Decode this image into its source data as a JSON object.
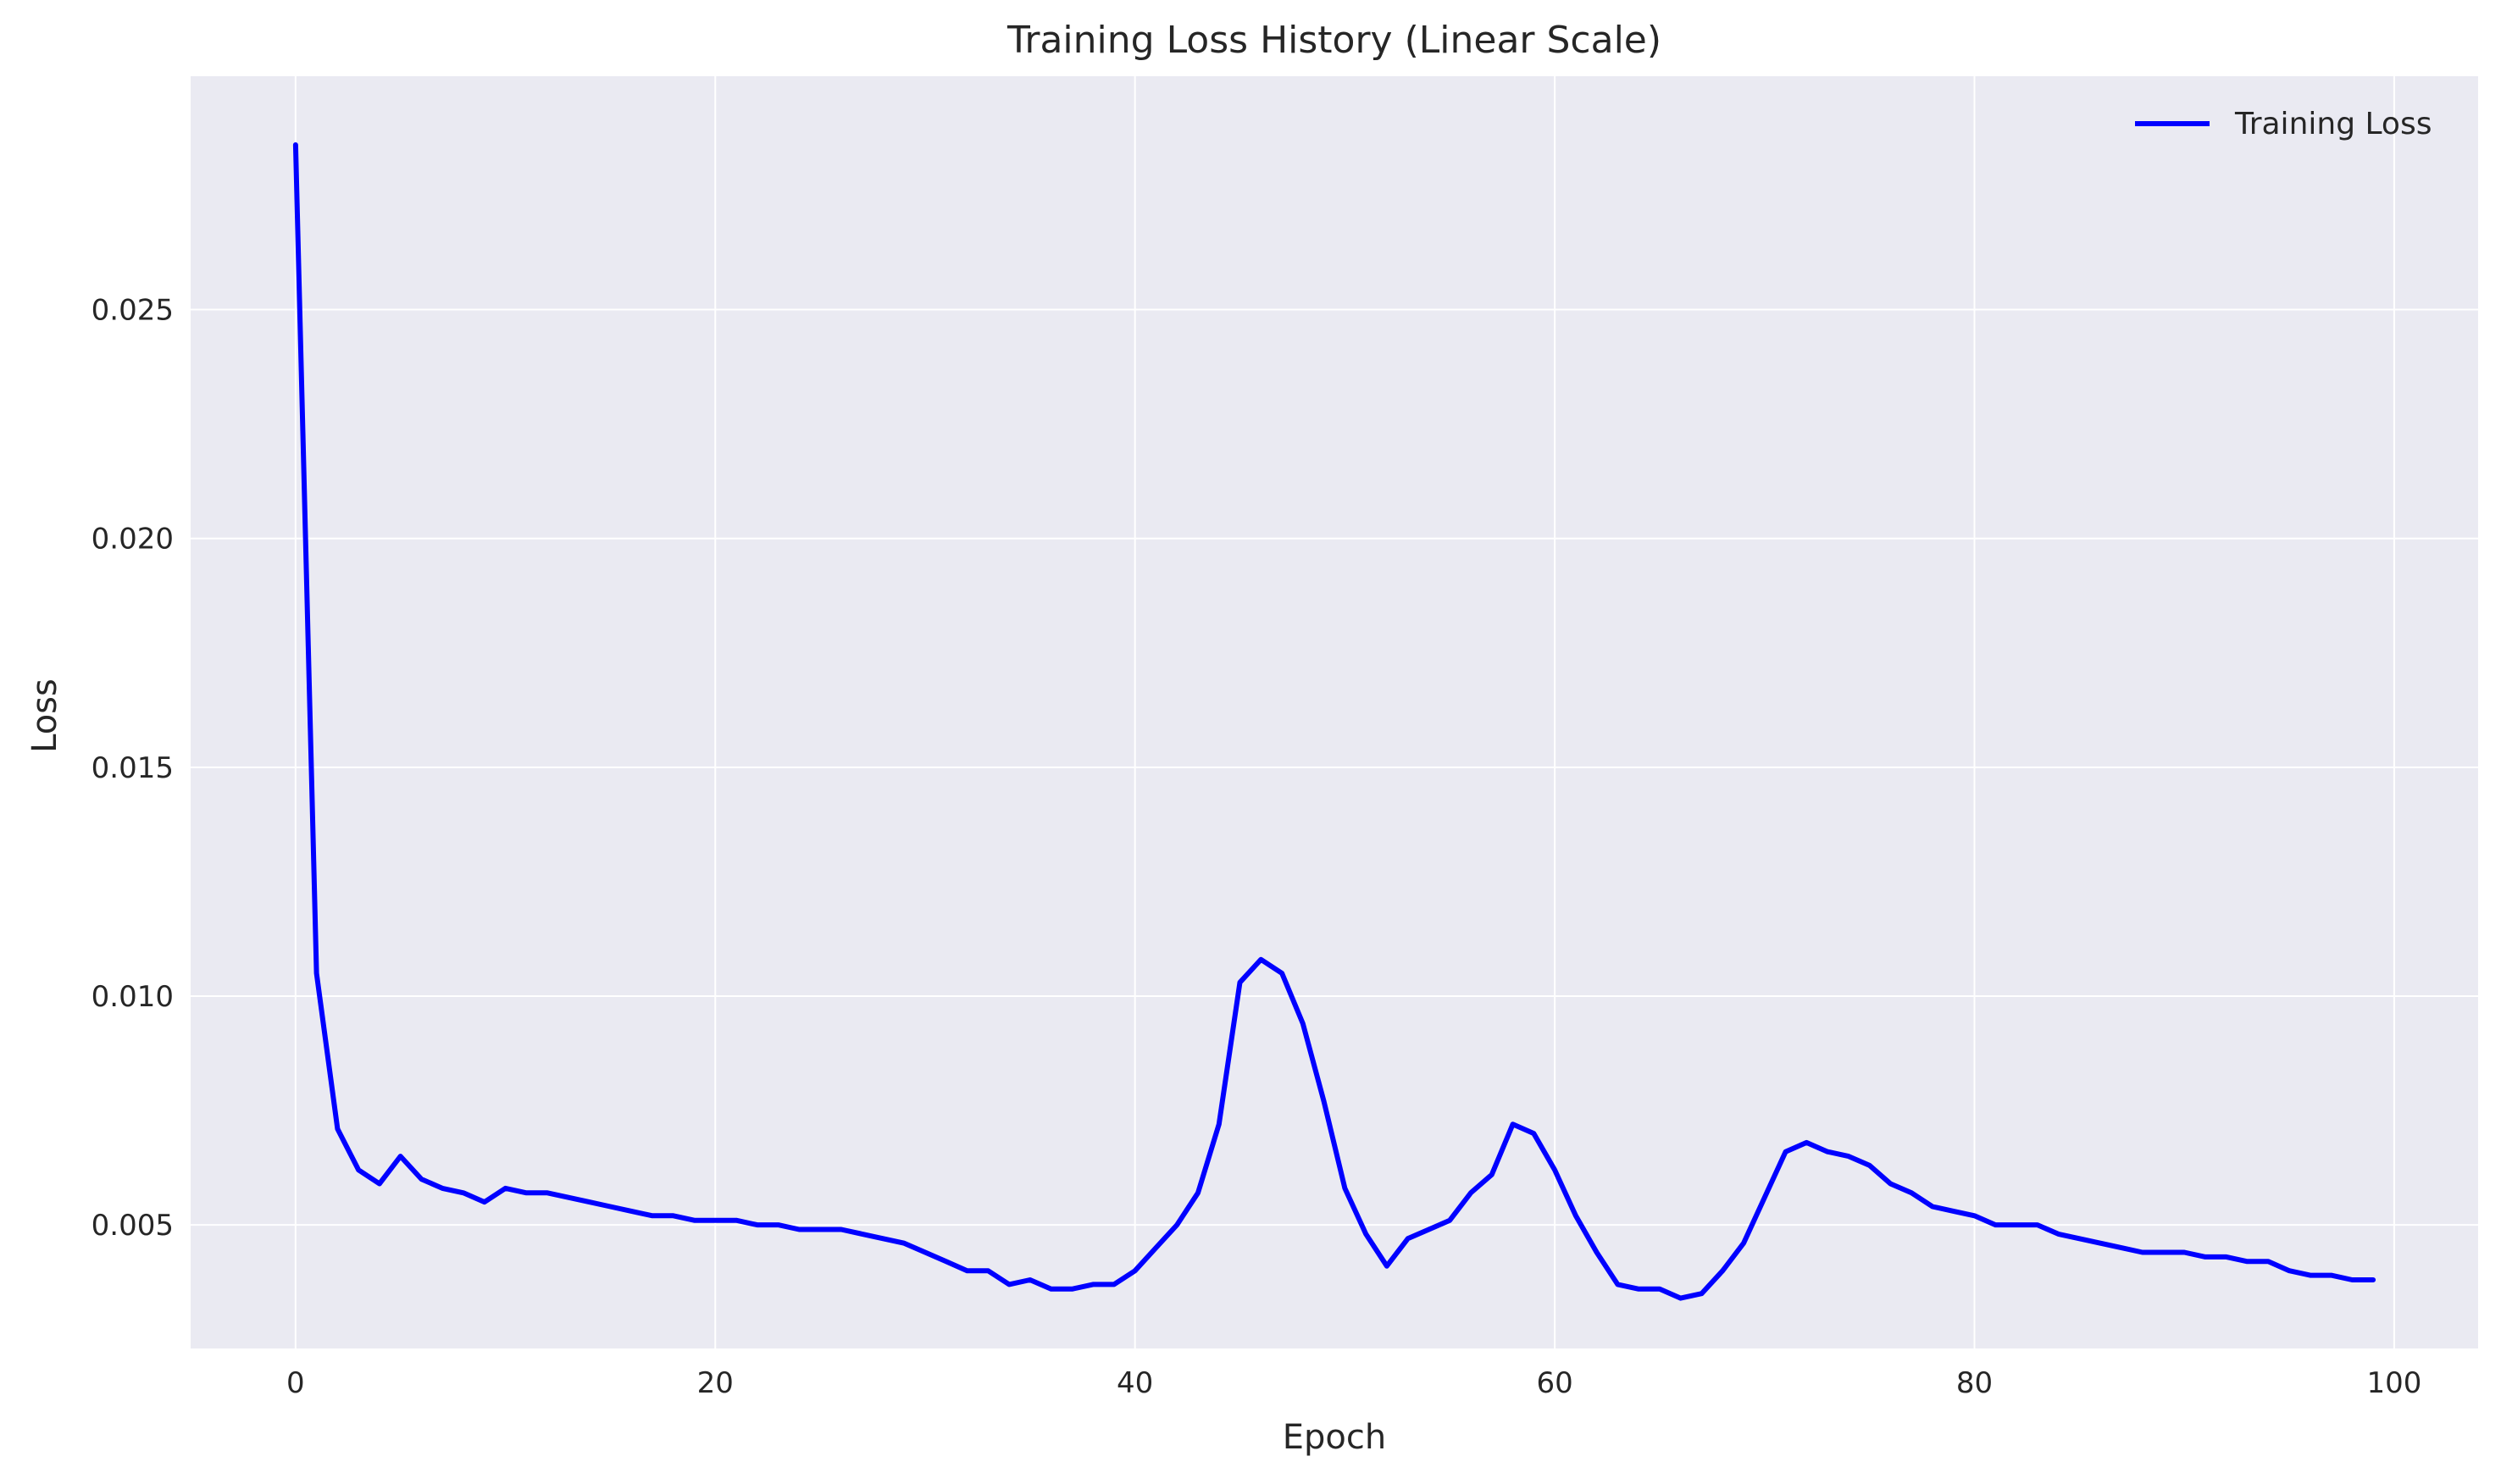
{
  "chart_data": {
    "type": "line",
    "title": "Training Loss History (Linear Scale)",
    "xlabel": "Epoch",
    "ylabel": "Loss",
    "xlim": [
      -5,
      104
    ],
    "ylim": [
      0.0023,
      0.0301
    ],
    "x_ticks": [
      0,
      20,
      40,
      60,
      80,
      100
    ],
    "y_ticks": [
      0.005,
      0.01,
      0.015,
      0.02,
      0.025
    ],
    "x_tick_labels": [
      "0",
      "20",
      "40",
      "60",
      "80",
      "100"
    ],
    "y_tick_labels": [
      "0.005",
      "0.010",
      "0.015",
      "0.020",
      "0.025"
    ],
    "grid": true,
    "legend_position": "top-right",
    "background_color": "#eaeaf2",
    "grid_color": "#ffffff",
    "series": [
      {
        "name": "Training Loss",
        "color": "#0000ff",
        "x": [
          0,
          1,
          2,
          3,
          4,
          5,
          6,
          7,
          8,
          9,
          10,
          11,
          12,
          13,
          14,
          15,
          16,
          17,
          18,
          19,
          20,
          21,
          22,
          23,
          24,
          25,
          26,
          27,
          28,
          29,
          30,
          31,
          32,
          33,
          34,
          35,
          36,
          37,
          38,
          39,
          40,
          41,
          42,
          43,
          44,
          45,
          46,
          47,
          48,
          49,
          50,
          51,
          52,
          53,
          54,
          55,
          56,
          57,
          58,
          59,
          60,
          61,
          62,
          63,
          64,
          65,
          66,
          67,
          68,
          69,
          70,
          71,
          72,
          73,
          74,
          75,
          76,
          77,
          78,
          79,
          80,
          81,
          82,
          83,
          84,
          85,
          86,
          87,
          88,
          89,
          90,
          91,
          92,
          93,
          94,
          95,
          96,
          97,
          98,
          99
        ],
        "values": [
          0.0286,
          0.0105,
          0.0071,
          0.0062,
          0.0059,
          0.0065,
          0.006,
          0.0058,
          0.0057,
          0.0055,
          0.0058,
          0.0057,
          0.0057,
          0.0056,
          0.0055,
          0.0054,
          0.0053,
          0.0052,
          0.0052,
          0.0051,
          0.0051,
          0.0051,
          0.005,
          0.005,
          0.0049,
          0.0049,
          0.0049,
          0.0048,
          0.0047,
          0.0046,
          0.0044,
          0.0042,
          0.004,
          0.004,
          0.0037,
          0.0038,
          0.0036,
          0.0036,
          0.0037,
          0.0037,
          0.004,
          0.0045,
          0.005,
          0.0057,
          0.0072,
          0.0103,
          0.0108,
          0.0105,
          0.0094,
          0.0077,
          0.0058,
          0.0048,
          0.0041,
          0.0047,
          0.0049,
          0.0051,
          0.0057,
          0.0061,
          0.0072,
          0.007,
          0.0062,
          0.0052,
          0.0044,
          0.0037,
          0.0036,
          0.0036,
          0.0034,
          0.0035,
          0.004,
          0.0046,
          0.0056,
          0.0066,
          0.0068,
          0.0066,
          0.0065,
          0.0063,
          0.0059,
          0.0057,
          0.0054,
          0.0053,
          0.0052,
          0.005,
          0.005,
          0.005,
          0.0048,
          0.0047,
          0.0046,
          0.0045,
          0.0044,
          0.0044,
          0.0044,
          0.0043,
          0.0043,
          0.0042,
          0.0042,
          0.004,
          0.0039,
          0.0039,
          0.0038,
          0.0038
        ]
      }
    ]
  }
}
